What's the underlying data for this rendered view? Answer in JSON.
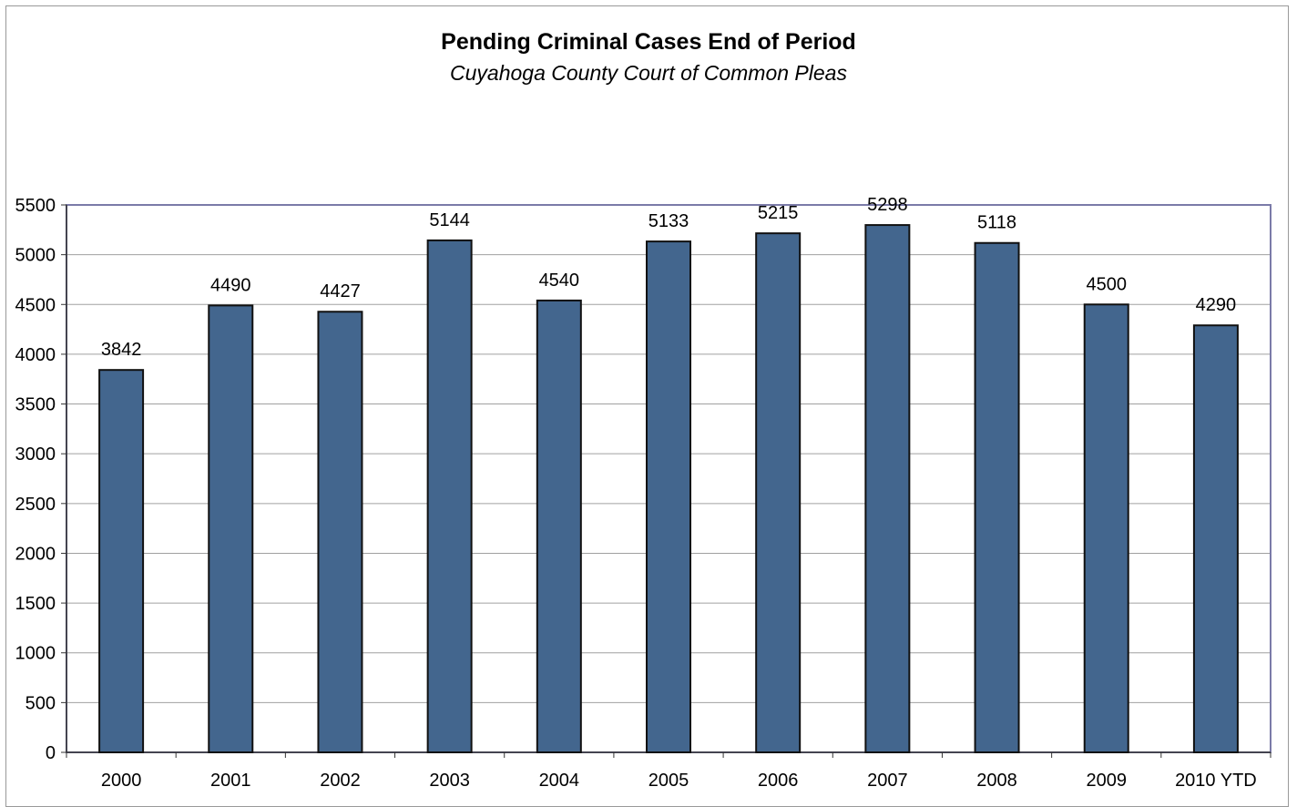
{
  "chart_data": {
    "type": "bar",
    "title": "Pending Criminal Cases End of Period",
    "subtitle": "Cuyahoga County Court of Common Pleas",
    "xlabel": "",
    "ylabel": "",
    "categories": [
      "2000",
      "2001",
      "2002",
      "2003",
      "2004",
      "2005",
      "2006",
      "2007",
      "2008",
      "2009",
      "2010 YTD"
    ],
    "values": [
      3842,
      4490,
      4427,
      5144,
      4540,
      5133,
      5215,
      5298,
      5118,
      4500,
      4290
    ],
    "ylim": [
      0,
      5500
    ],
    "yticks": [
      "0",
      "500",
      "1000",
      "1500",
      "2000",
      "2500",
      "3000",
      "3500",
      "4000",
      "4500",
      "5000",
      "5500"
    ],
    "data_labels": [
      "3842",
      "4490",
      "4427",
      "5144",
      "4540",
      "5133",
      "5215",
      "5298",
      "5118",
      "4500",
      "4290"
    ],
    "grid": true,
    "legend": "none",
    "bar_color": "#43668e",
    "bar_edge_color": "#111111",
    "plot_background": "#ffffff",
    "gridline_color": "#a0a0a0",
    "plot_border_color": "#7b7ba8"
  }
}
